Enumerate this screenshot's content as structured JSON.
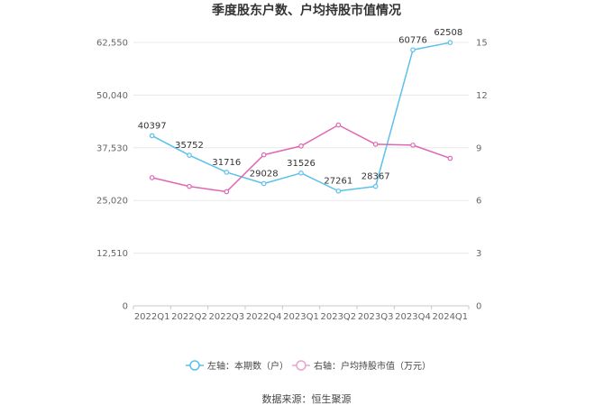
{
  "chart_data": {
    "type": "line",
    "title": "季度股东户数、户均持股市值情况",
    "categories": [
      "2022Q1",
      "2022Q2",
      "2022Q3",
      "2022Q4",
      "2023Q1",
      "2023Q2",
      "2023Q3",
      "2023Q4",
      "2024Q1"
    ],
    "series": [
      {
        "name": "左轴：本期数（户）",
        "axis": "left",
        "color": "#5bc0eb",
        "values": [
          40397,
          35752,
          31716,
          29028,
          31526,
          27261,
          28367,
          60776,
          62508
        ],
        "labels": [
          "40397",
          "35752",
          "31716",
          "29028",
          "31526",
          "27261",
          "28367",
          "60776",
          "62508"
        ]
      },
      {
        "name": "右轴：户均持股市值（万元）",
        "axis": "right",
        "color": "#e066b3",
        "values": [
          7.3,
          6.8,
          6.5,
          8.6,
          9.1,
          10.3,
          9.2,
          9.15,
          8.4
        ]
      }
    ],
    "y_left": {
      "min": 0,
      "max": 62550,
      "ticks": [
        "0",
        "12,510",
        "25,020",
        "37,530",
        "50,040",
        "62,550"
      ]
    },
    "y_right": {
      "min": 0,
      "max": 15,
      "ticks": [
        "0",
        "3",
        "6",
        "9",
        "12",
        "15"
      ]
    },
    "grid": true,
    "legend_position": "bottom"
  },
  "footer": {
    "source": "数据来源：恒生聚源"
  }
}
